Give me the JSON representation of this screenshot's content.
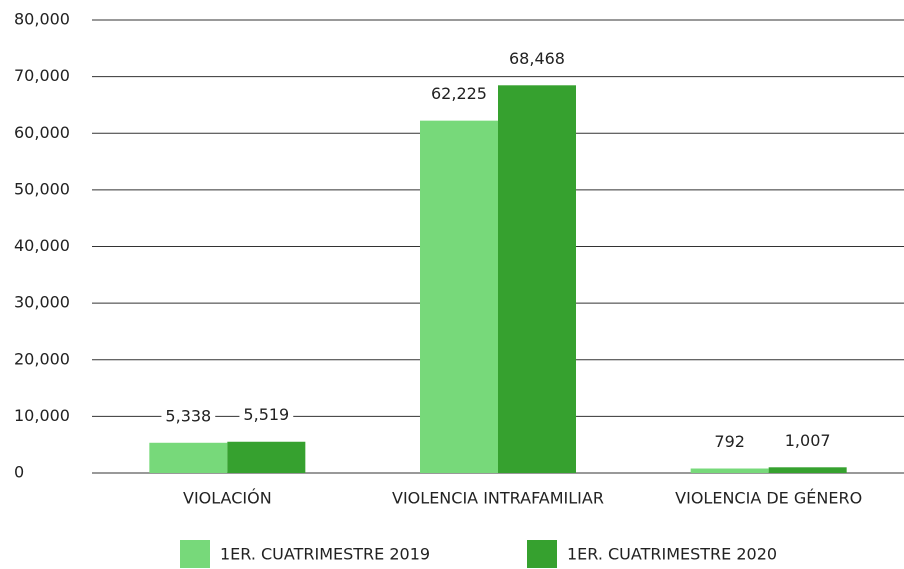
{
  "chart_data": {
    "type": "bar",
    "categories": [
      "VIOLACIÓN",
      "VIOLENCIA INTRAFAMILIAR",
      "VIOLENCIA DE GÉNERO"
    ],
    "series": [
      {
        "name": "1ER. CUATRIMESTRE 2019",
        "color": "#77d97a",
        "values": [
          5338,
          62225,
          792
        ],
        "value_labels": [
          "5,338",
          "62,225",
          "792"
        ]
      },
      {
        "name": "1ER. CUATRIMESTRE 2020",
        "color": "#36a12f",
        "values": [
          5519,
          68468,
          1007
        ],
        "value_labels": [
          "5,519",
          "68,468",
          "1,007"
        ]
      }
    ],
    "ylim": [
      0,
      80000
    ],
    "yticks": [
      0,
      {
        "value": 10000,
        "label": "10,000"
      },
      {
        "value": 20000,
        "label": "20,000"
      },
      {
        "value": 30000,
        "label": "30,000"
      },
      {
        "value": 40000,
        "label": "40,000"
      },
      {
        "value": 50000,
        "label": "50,000"
      },
      {
        "value": 60000,
        "label": "60,000"
      },
      {
        "value": 70000,
        "label": "70,000"
      },
      {
        "value": 80000,
        "label": "80,000"
      }
    ],
    "grid": true,
    "legend": "bottom"
  }
}
